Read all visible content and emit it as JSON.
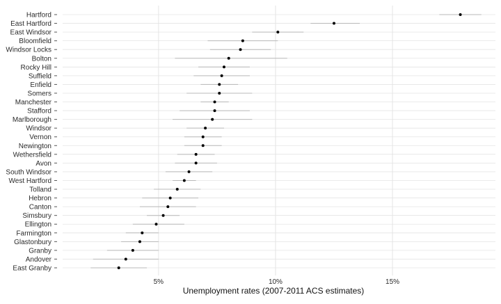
{
  "chart_data": {
    "type": "scatter",
    "subtype": "dot-plot-with-error-bars",
    "xlabel": "Unemployment rates (2007-2011 ACS estimates)",
    "ylabel": "",
    "xlim": [
      0.9,
      19.4
    ],
    "x_ticks": [
      {
        "value": 5,
        "label": "5%"
      },
      {
        "value": 10,
        "label": "10%"
      },
      {
        "value": 15,
        "label": "15%"
      }
    ],
    "grid": true,
    "legend": "none",
    "colors": {
      "point": "#000000",
      "error_bar": "#b8b8b8",
      "grid": "#e4e4e4"
    },
    "categories": [
      "Hartford",
      "East Hartford",
      "East Windsor",
      "Bloomfield",
      "Windsor Locks",
      "Bolton",
      "Rocky Hill",
      "Suffield",
      "Enfield",
      "Somers",
      "Manchester",
      "Stafford",
      "Marlborough",
      "Windsor",
      "Vernon",
      "Newington",
      "Wethersfield",
      "Avon",
      "South Windsor",
      "West Hartford",
      "Tolland",
      "Hebron",
      "Canton",
      "Simsbury",
      "Ellington",
      "Farmington",
      "Glastonbury",
      "Granby",
      "Andover",
      "East Granby"
    ],
    "values": [
      17.9,
      12.5,
      10.1,
      8.6,
      8.5,
      8.0,
      7.8,
      7.7,
      7.6,
      7.6,
      7.4,
      7.4,
      7.3,
      7.0,
      6.9,
      6.9,
      6.6,
      6.6,
      6.3,
      6.1,
      5.8,
      5.5,
      5.4,
      5.2,
      4.9,
      4.3,
      4.2,
      3.9,
      3.6,
      3.3
    ],
    "lower": [
      17.0,
      11.5,
      9.0,
      7.1,
      7.2,
      5.7,
      6.7,
      6.5,
      6.8,
      6.2,
      6.8,
      5.9,
      5.6,
      6.2,
      6.1,
      6.1,
      5.8,
      5.7,
      5.3,
      5.6,
      4.8,
      4.3,
      4.2,
      4.5,
      3.9,
      3.6,
      3.4,
      2.8,
      2.2,
      2.1
    ],
    "upper": [
      18.8,
      13.6,
      11.2,
      10.1,
      9.8,
      10.5,
      8.9,
      8.9,
      8.4,
      9.0,
      8.0,
      8.9,
      9.0,
      7.8,
      7.7,
      7.7,
      7.4,
      7.5,
      7.3,
      6.6,
      6.8,
      6.7,
      6.6,
      5.9,
      6.1,
      5.0,
      5.0,
      5.0,
      5.0,
      4.5
    ]
  }
}
